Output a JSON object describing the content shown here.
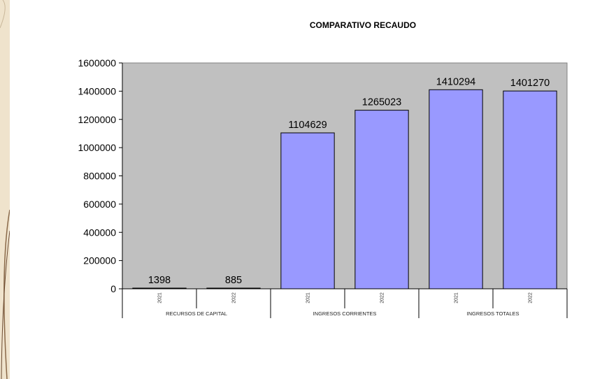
{
  "chart_data": {
    "type": "bar",
    "title": "COMPARATIVO RECAUDO",
    "xlabel": "",
    "ylabel": "",
    "ylim": [
      0,
      1600000
    ],
    "yticks": [
      0,
      200000,
      400000,
      600000,
      800000,
      1000000,
      1200000,
      1400000,
      1600000
    ],
    "groups": [
      {
        "label": "RECURSOS DE CAPITAL",
        "bars": [
          {
            "category": "2021",
            "value": 1398
          },
          {
            "category": "2022",
            "value": 885
          }
        ]
      },
      {
        "label": "INGRESOS CORRIENTES",
        "bars": [
          {
            "category": "2021",
            "value": 1104629
          },
          {
            "category": "2022",
            "value": 1265023
          }
        ]
      },
      {
        "label": "INGRESOS TOTALES",
        "bars": [
          {
            "category": "2021",
            "value": 1410294
          },
          {
            "category": "2022",
            "value": 1401270
          }
        ]
      }
    ],
    "grid": false,
    "plot_background": "#c0c0c0",
    "bar_color": "#9999ff",
    "bar_edge_color": "#000000",
    "legend": "none"
  }
}
